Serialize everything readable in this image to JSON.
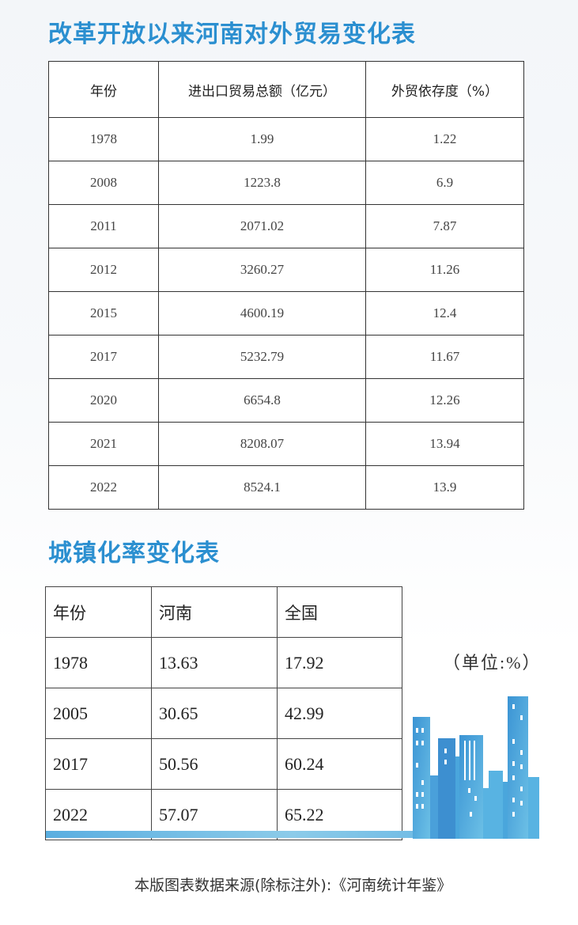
{
  "trade_table": {
    "title": "改革开放以来河南对外贸易变化表",
    "headers": [
      "年份",
      "进出口贸易总额（亿元）",
      "外贸依存度（%）"
    ],
    "rows": [
      [
        "1978",
        "1.99",
        "1.22"
      ],
      [
        "2008",
        "1223.8",
        "6.9"
      ],
      [
        "2011",
        "2071.02",
        "7.87"
      ],
      [
        "2012",
        "3260.27",
        "11.26"
      ],
      [
        "2015",
        "4600.19",
        "12.4"
      ],
      [
        "2017",
        "5232.79",
        "11.67"
      ],
      [
        "2020",
        "6654.8",
        "12.26"
      ],
      [
        "2021",
        "8208.07",
        "13.94"
      ],
      [
        "2022",
        "8524.1",
        "13.9"
      ]
    ]
  },
  "urban_table": {
    "title": "城镇化率变化表",
    "unit": "（单位:%）",
    "headers": [
      "年份",
      "河南",
      "全国"
    ],
    "rows": [
      [
        "1978",
        "13.63",
        "17.92"
      ],
      [
        "2005",
        "30.65",
        "42.99"
      ],
      [
        "2017",
        "50.56",
        "60.24"
      ],
      [
        "2022",
        "57.07",
        "65.22"
      ]
    ]
  },
  "footer": "本版图表数据来源(除标注外):《河南统计年鉴》",
  "colors": {
    "accent": "#2b8fd0",
    "building": "#4fa8dc"
  }
}
